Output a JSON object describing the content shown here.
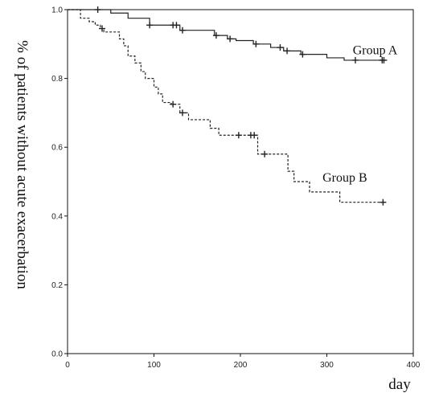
{
  "chart_data": {
    "type": "line",
    "title": "",
    "xlabel": "day",
    "ylabel": "% of patients without acute exacerbation",
    "xlim": [
      0,
      400
    ],
    "ylim": [
      0,
      1.0
    ],
    "xticks": [
      "0",
      "100",
      "200",
      "300",
      "400"
    ],
    "yticks": [
      "0.0",
      "0.2",
      "0.4",
      "0.6",
      "0.8",
      "1.0"
    ],
    "grid": false,
    "series": [
      {
        "name": "Group A",
        "line_style": "solid",
        "color": "#222222",
        "steps": [
          [
            0,
            1.0
          ],
          [
            50,
            0.99
          ],
          [
            70,
            0.975
          ],
          [
            95,
            0.955
          ],
          [
            130,
            0.94
          ],
          [
            170,
            0.925
          ],
          [
            185,
            0.915
          ],
          [
            195,
            0.91
          ],
          [
            215,
            0.9
          ],
          [
            235,
            0.89
          ],
          [
            250,
            0.88
          ],
          [
            270,
            0.87
          ],
          [
            300,
            0.86
          ],
          [
            320,
            0.853
          ],
          [
            366,
            0.853
          ]
        ],
        "censored": [
          35,
          95,
          122,
          126,
          133,
          172,
          188,
          218,
          246,
          254,
          272,
          333,
          364,
          366
        ]
      },
      {
        "name": "Group B",
        "line_style": "dashed",
        "color": "#222222",
        "steps": [
          [
            0,
            1.0
          ],
          [
            15,
            0.975
          ],
          [
            25,
            0.965
          ],
          [
            32,
            0.955
          ],
          [
            38,
            0.945
          ],
          [
            42,
            0.935
          ],
          [
            60,
            0.915
          ],
          [
            65,
            0.895
          ],
          [
            70,
            0.865
          ],
          [
            78,
            0.845
          ],
          [
            85,
            0.82
          ],
          [
            90,
            0.8
          ],
          [
            100,
            0.775
          ],
          [
            105,
            0.755
          ],
          [
            110,
            0.73
          ],
          [
            120,
            0.725
          ],
          [
            130,
            0.7
          ],
          [
            140,
            0.68
          ],
          [
            165,
            0.655
          ],
          [
            175,
            0.635
          ],
          [
            220,
            0.58
          ],
          [
            255,
            0.53
          ],
          [
            262,
            0.5
          ],
          [
            280,
            0.47
          ],
          [
            315,
            0.44
          ],
          [
            366,
            0.44
          ]
        ],
        "censored": [
          40,
          122,
          133,
          198,
          212,
          216,
          228,
          365
        ]
      }
    ],
    "annotations": [
      {
        "text": "Group A",
        "x": 330,
        "y": 0.87
      },
      {
        "text": "Group B",
        "x": 295,
        "y": 0.5
      }
    ]
  }
}
